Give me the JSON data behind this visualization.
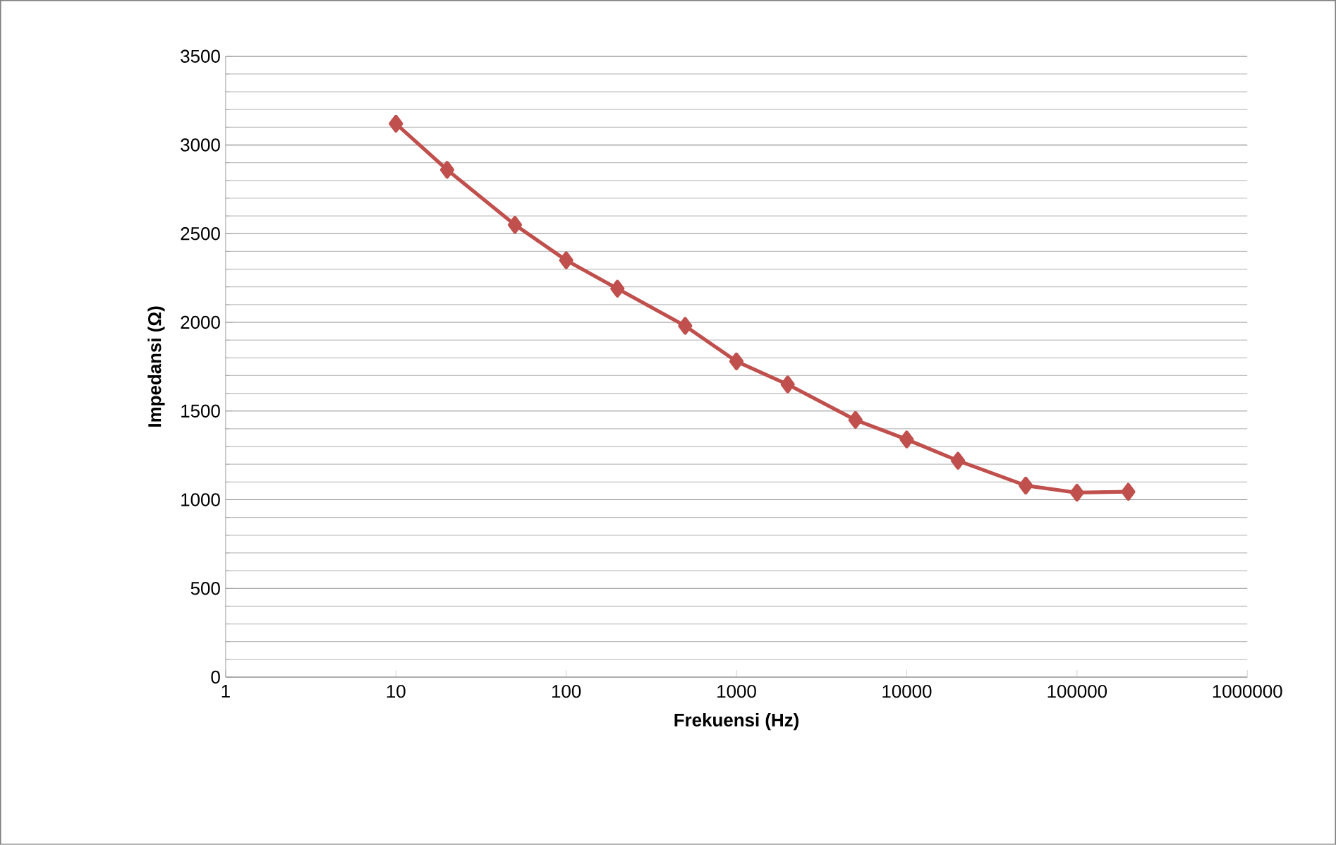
{
  "chart_data": {
    "type": "line",
    "xlabel": "Frekuensi (Hz)",
    "ylabel": "Impedansi (Ω)",
    "log": "x",
    "x": [
      10,
      20,
      50,
      100,
      200,
      500,
      1000,
      2000,
      5000,
      10000,
      20000,
      50000,
      100000,
      200000
    ],
    "series": [
      {
        "color": "#c0504d",
        "values": [
          3120,
          2860,
          2550,
          2350,
          2190,
          1980,
          1780,
          1650,
          1450,
          1340,
          1220,
          1080,
          1040,
          1045
        ]
      }
    ],
    "xlim": [
      1,
      1000000
    ],
    "xticks": [
      1,
      10,
      100,
      1000,
      10000,
      100000,
      1000000
    ],
    "ylim": [
      0,
      3500
    ],
    "yticks": [
      0,
      500,
      1000,
      1500,
      2000,
      2500,
      3000,
      3500
    ],
    "grid": "y",
    "marker": "diamond",
    "line_style": "solid"
  }
}
